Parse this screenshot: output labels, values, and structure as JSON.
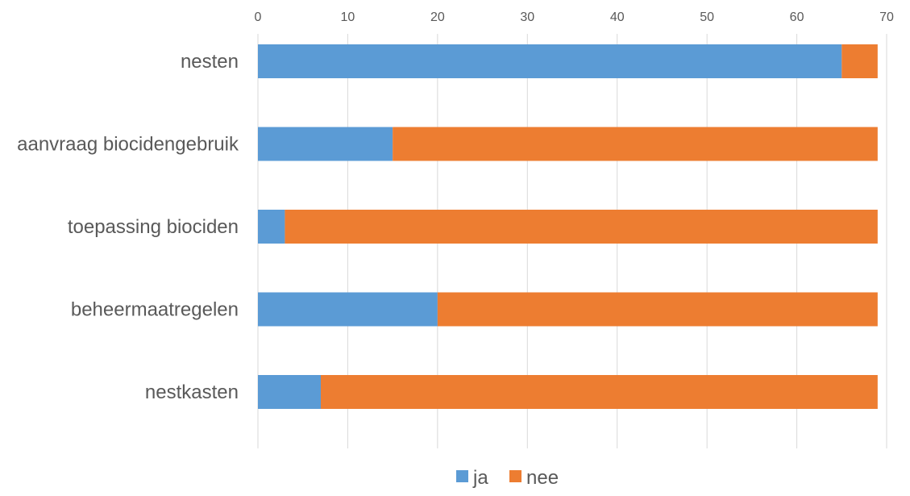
{
  "chart_data": {
    "type": "bar",
    "orientation": "horizontal",
    "stacked": true,
    "title": "",
    "xlabel": "",
    "ylabel": "",
    "categories": [
      "nesten",
      "aanvraag biocidengebruik",
      "toepassing biociden",
      "beheermaatregelen",
      "nestkasten"
    ],
    "series": [
      {
        "name": "ja",
        "color": "#5B9BD5",
        "values": [
          65,
          15,
          3,
          20,
          7
        ]
      },
      {
        "name": "nee",
        "color": "#ED7D31",
        "values": [
          4,
          54,
          66,
          49,
          62
        ]
      }
    ],
    "xlim": [
      0,
      70
    ],
    "x_ticks": [
      "0",
      "10",
      "20",
      "30",
      "40",
      "50",
      "60",
      "70"
    ],
    "x_axis_position": "top",
    "grid": true,
    "legend_position": "bottom"
  }
}
